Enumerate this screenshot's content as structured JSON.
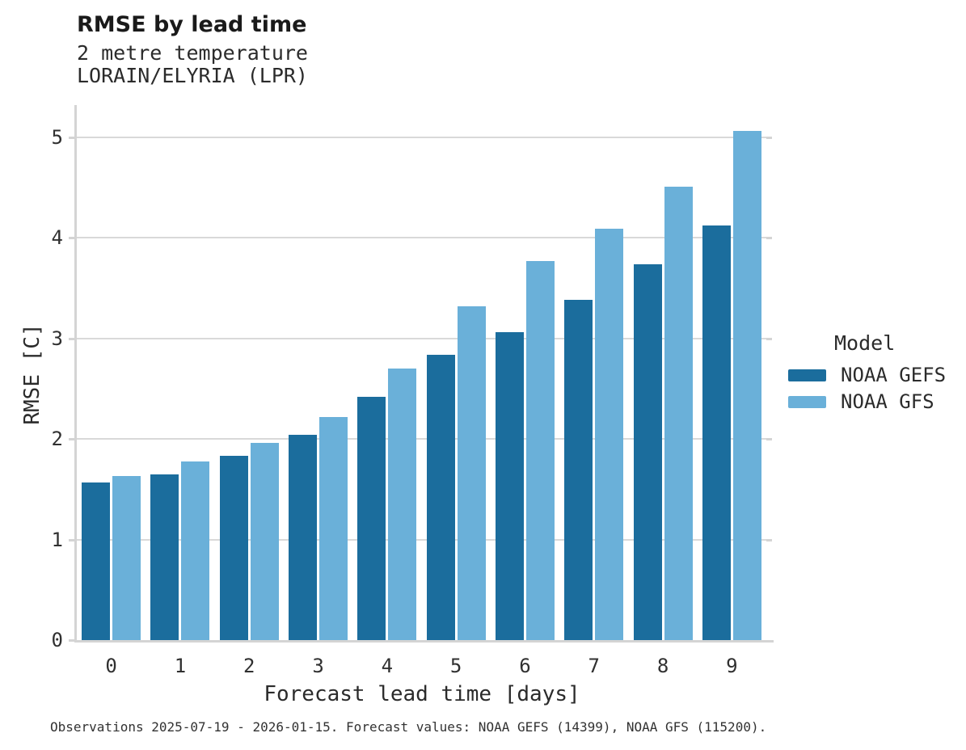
{
  "header": {
    "title": "RMSE by lead time",
    "subtitle1": "2 metre temperature",
    "subtitle2": "LORAIN/ELYRIA (LPR)"
  },
  "axes": {
    "xlabel": "Forecast lead time [days]",
    "ylabel": "RMSE [C]"
  },
  "legend": {
    "title": "Model",
    "entries": [
      {
        "label": "NOAA GEFS",
        "color": "#1b6d9d"
      },
      {
        "label": "NOAA GFS",
        "color": "#6ab0d9"
      }
    ]
  },
  "footer": {
    "note": "Observations 2025-07-19 - 2026-01-15. Forecast values: NOAA GEFS (14399), NOAA GFS (115200)."
  },
  "chart_data": {
    "type": "bar",
    "title": "RMSE by lead time",
    "subtitle": [
      "2 metre temperature",
      "LORAIN/ELYRIA (LPR)"
    ],
    "categories": [
      "0",
      "1",
      "2",
      "3",
      "4",
      "5",
      "6",
      "7",
      "8",
      "9"
    ],
    "series": [
      {
        "name": "NOAA GEFS",
        "color": "#1b6d9d",
        "values": [
          1.57,
          1.65,
          1.83,
          2.04,
          2.42,
          2.84,
          3.06,
          3.38,
          3.74,
          4.12
        ]
      },
      {
        "name": "NOAA GFS",
        "color": "#6ab0d9",
        "values": [
          1.63,
          1.78,
          1.96,
          2.22,
          2.7,
          3.32,
          3.77,
          4.09,
          4.51,
          5.06
        ]
      }
    ],
    "xlabel": "Forecast lead time [days]",
    "ylabel": "RMSE [C]",
    "ylim": [
      0,
      5.32
    ],
    "yticks": [
      0,
      1,
      2,
      3,
      4,
      5
    ],
    "grid": "horizontal",
    "grid_color": "#d9d9d9",
    "legend_title": "Model",
    "legend_position": "right",
    "footnote": "Observations 2025-07-19 - 2026-01-15. Forecast values: NOAA GEFS (14399), NOAA GFS (115200)."
  }
}
